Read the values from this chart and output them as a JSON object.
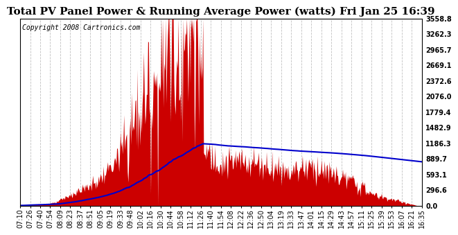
{
  "title": "Total PV Panel Power & Running Average Power (watts) Fri Jan 25 16:39",
  "copyright": "Copyright 2008 Cartronics.com",
  "background_color": "#ffffff",
  "plot_bg_color": "#ffffff",
  "grid_color": "#c0c0c0",
  "bar_color": "#cc0000",
  "line_color": "#0000cc",
  "yticks": [
    0.0,
    296.6,
    593.1,
    889.7,
    1186.3,
    1482.9,
    1779.4,
    2076.0,
    2372.6,
    2669.1,
    2965.7,
    3262.3,
    3558.8
  ],
  "ymax": 3558.8,
  "ymin": 0.0,
  "xtick_labels": [
    "07:10",
    "07:26",
    "07:40",
    "07:54",
    "08:09",
    "08:23",
    "08:37",
    "08:51",
    "09:05",
    "09:19",
    "09:33",
    "09:48",
    "10:02",
    "10:16",
    "10:30",
    "10:44",
    "10:58",
    "11:12",
    "11:26",
    "11:40",
    "11:54",
    "12:08",
    "12:22",
    "12:36",
    "12:50",
    "13:04",
    "13:19",
    "13:33",
    "13:47",
    "14:01",
    "14:15",
    "14:29",
    "14:43",
    "14:57",
    "15:11",
    "15:25",
    "15:39",
    "15:53",
    "16:07",
    "16:21",
    "16:35"
  ],
  "title_fontsize": 11,
  "copyright_fontsize": 7,
  "tick_fontsize": 7
}
